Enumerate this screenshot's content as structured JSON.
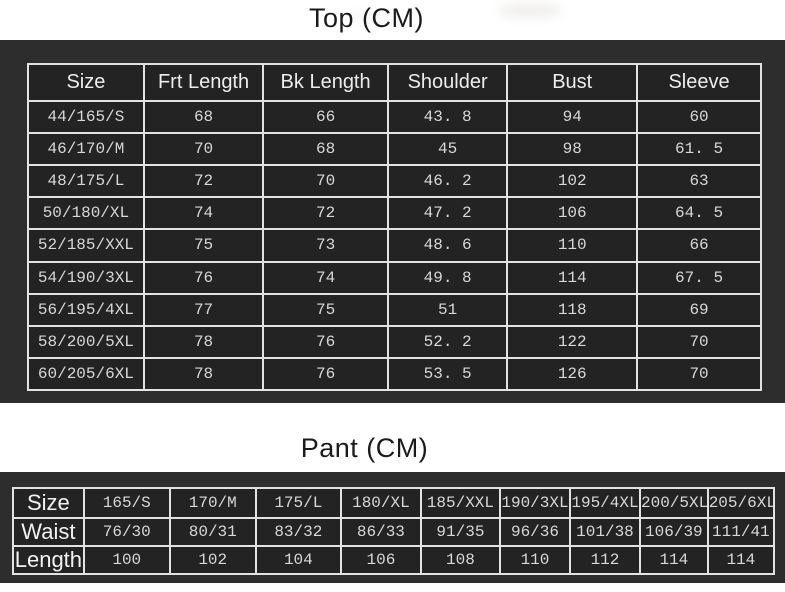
{
  "colors": {
    "page_background": "#ffffff",
    "panel_background": "#2d2d2d",
    "cell_background": "#232323",
    "table_border": "#e2e2e2",
    "cell_text": "#d8d8d8",
    "header_text": "#ededed",
    "title_text": "#1b1b1b"
  },
  "chart_data": [
    {
      "type": "table",
      "title": "Top (CM)",
      "columns": [
        "Size",
        "Frt Length",
        "Bk Length",
        "Shoulder",
        "Bust",
        "Sleeve"
      ],
      "rows": [
        [
          "44/165/S",
          "68",
          "66",
          "43. 8",
          "94",
          "60"
        ],
        [
          "46/170/M",
          "70",
          "68",
          "45",
          "98",
          "61. 5"
        ],
        [
          "48/175/L",
          "72",
          "70",
          "46. 2",
          "102",
          "63"
        ],
        [
          "50/180/XL",
          "74",
          "72",
          "47. 2",
          "106",
          "64. 5"
        ],
        [
          "52/185/XXL",
          "75",
          "73",
          "48. 6",
          "110",
          "66"
        ],
        [
          "54/190/3XL",
          "76",
          "74",
          "49. 8",
          "114",
          "67. 5"
        ],
        [
          "56/195/4XL",
          "77",
          "75",
          "51",
          "118",
          "69"
        ],
        [
          "58/200/5XL",
          "78",
          "76",
          "52. 2",
          "122",
          "70"
        ],
        [
          "60/205/6XL",
          "78",
          "76",
          "53. 5",
          "126",
          "70"
        ]
      ]
    },
    {
      "type": "table",
      "title": "Pant (CM)",
      "row_labels": [
        "Size",
        "Waist",
        "Length"
      ],
      "rows": [
        [
          "165/S",
          "170/M",
          "175/L",
          "180/XL",
          "185/XXL",
          "190/3XL",
          "195/4XL",
          "200/5XL",
          "205/6XL"
        ],
        [
          "76/30",
          "80/31",
          "83/32",
          "86/33",
          "91/35",
          "96/36",
          "101/38",
          "106/39",
          "111/41"
        ],
        [
          "100",
          "102",
          "104",
          "106",
          "108",
          "110",
          "112",
          "114",
          "114"
        ]
      ]
    }
  ]
}
